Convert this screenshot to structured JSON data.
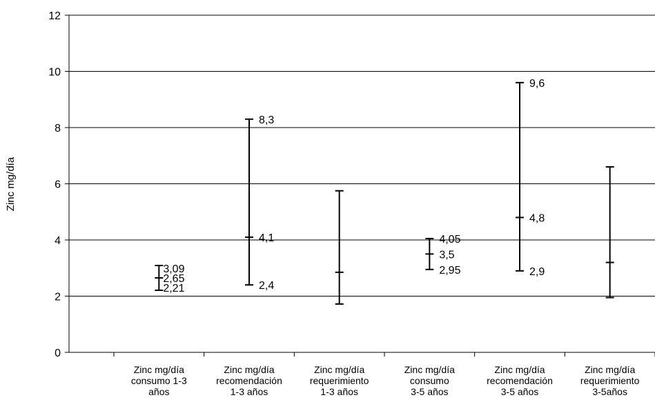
{
  "chart_data": {
    "type": "range",
    "title": "",
    "xlabel": "",
    "ylabel": "Zinc mg/día",
    "ylim": [
      0,
      12
    ],
    "yticks": [
      0,
      2,
      4,
      6,
      8,
      10,
      12
    ],
    "grid": true,
    "categories": [
      [
        "Zinc mg/día",
        "consumo 1-3",
        "años"
      ],
      [
        "Zinc mg/día",
        "recomendación",
        "1-3 años"
      ],
      [
        "Zinc mg/día",
        "requerimiento",
        "1-3 años"
      ],
      [
        "Zinc mg/día",
        "consumo",
        "3-5 años"
      ],
      [
        "Zinc mg/día",
        "recomendación",
        "3-5 años"
      ],
      [
        "Zinc mg/día",
        "requerimiento",
        "3-5años"
      ]
    ],
    "series": [
      {
        "high": 3.09,
        "mid": 2.65,
        "low": 2.21,
        "labels": [
          "3,09",
          "2,65",
          "2,21"
        ]
      },
      {
        "high": 8.3,
        "mid": 4.1,
        "low": 2.4,
        "labels": [
          "8,3",
          "4,1",
          "2,4"
        ]
      },
      {
        "high": 5.75,
        "mid": 2.85,
        "low": 1.72,
        "labels": []
      },
      {
        "high": 4.05,
        "mid": 3.5,
        "low": 2.95,
        "labels": [
          "4,05",
          "3,5",
          "2,95"
        ]
      },
      {
        "high": 9.6,
        "mid": 4.8,
        "low": 2.9,
        "labels": [
          "9,6",
          "4,8",
          "2,9"
        ]
      },
      {
        "high": 6.6,
        "mid": 3.2,
        "low": 1.95,
        "labels": []
      }
    ]
  }
}
